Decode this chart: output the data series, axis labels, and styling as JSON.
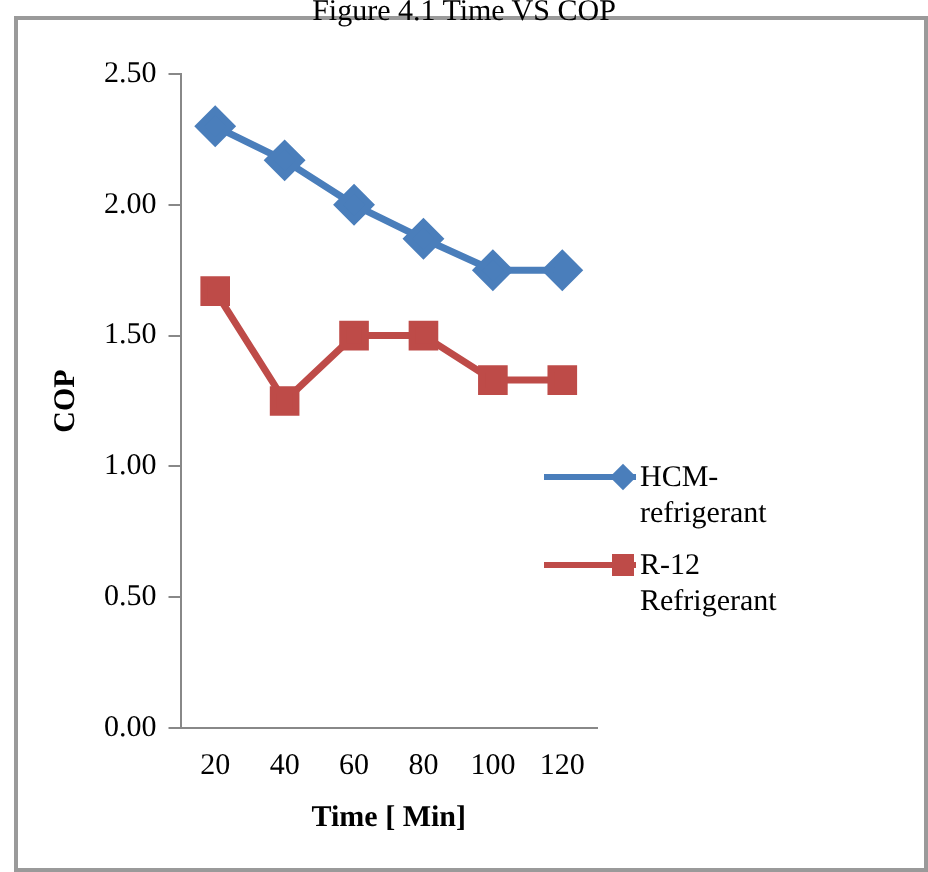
{
  "chart_data": {
    "type": "line",
    "title": "Figure 4.1 Time VS COP",
    "xlabel": "Time [ Min]",
    "ylabel": "COP",
    "categories": [
      "20",
      "40",
      "60",
      "80",
      "100",
      "120"
    ],
    "series": [
      {
        "name": "HCM-refrigerant",
        "color": "#4a7ebb",
        "marker": "diamond",
        "values": [
          2.3,
          2.17,
          2.0,
          1.87,
          1.75,
          1.75
        ]
      },
      {
        "name": "R-12 Refrigerant",
        "color": "#be4b48",
        "marker": "square",
        "values": [
          1.67,
          1.25,
          1.5,
          1.5,
          1.33,
          1.33
        ]
      }
    ],
    "ylim": [
      0,
      2.5
    ],
    "yticks": [
      {
        "value": 0,
        "label": "0.00"
      },
      {
        "value": 0.5,
        "label": "0.50"
      },
      {
        "value": 1,
        "label": "1.00"
      },
      {
        "value": 1.5,
        "label": "1.50"
      },
      {
        "value": 2,
        "label": "2.00"
      },
      {
        "value": 2.5,
        "label": "2.50"
      }
    ],
    "grid": false,
    "legend": "right",
    "line_style": "solid"
  }
}
